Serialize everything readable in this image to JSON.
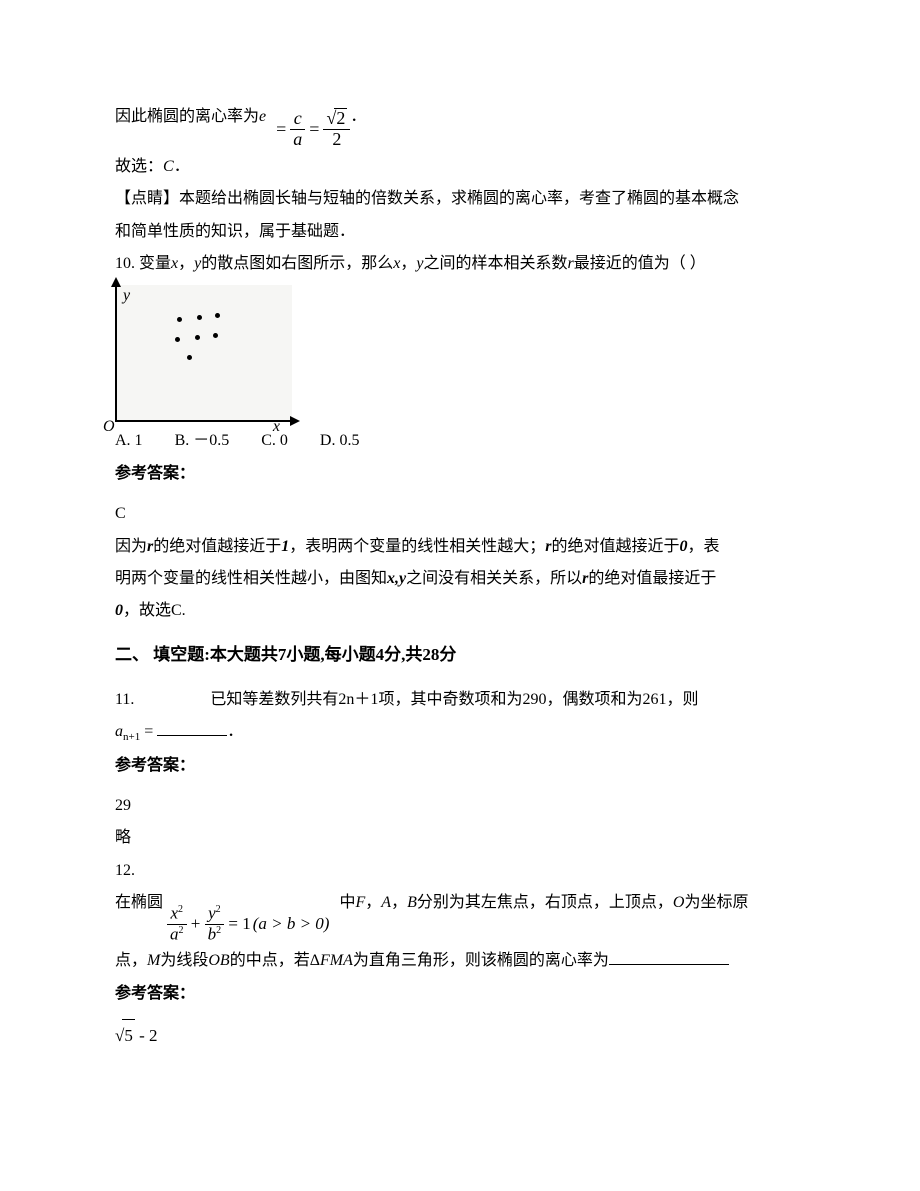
{
  "q9": {
    "pre": "因此椭圆的离心率为",
    "eVar": "e",
    "eq": {
      "lhs_num": "c",
      "lhs_den": "a",
      "rhs_num_radicand": "2",
      "rhs_den": "2"
    },
    "period": "．",
    "conclude": "故选：",
    "choice": "C",
    "concludeEnd": "．",
    "tipLabel": "【点睛】",
    "tip1": "本题给出椭圆长轴与短轴的倍数关系，求椭圆的离心率，考查了椭圆的基本概念",
    "tip2": "和简单性质的知识，属于基础题．"
  },
  "q10": {
    "num": "10. ",
    "pre1": "变量",
    "x": "x",
    "comma1": "，",
    "y": "y",
    "mid": "的散点图如右图所示，那么",
    "x2": "x",
    "comma2": "，",
    "y2": "y",
    "post": "之间的样本相关系数",
    "r": "r",
    "tail": "最接近的值为（  ）",
    "scatter": {
      "bg": "#f6f6f4",
      "axis": "#000000",
      "dot": "#000000",
      "ylabel": "y",
      "xlabel": "x",
      "origin": "O",
      "points": [
        [
          60,
          32
        ],
        [
          80,
          30
        ],
        [
          98,
          28
        ],
        [
          58,
          52
        ],
        [
          78,
          50
        ],
        [
          96,
          48
        ],
        [
          70,
          70
        ]
      ]
    },
    "choices": {
      "A": "A. 1",
      "B": "B. －0.5",
      "C": "C. 0",
      "D": "D. 0.5"
    },
    "refLabel": "参考答案：",
    "answer": "C",
    "exp1a": "因为",
    "rVar": "r",
    "exp1b": "的绝对值越接近于",
    "one": "1",
    "exp1c": "，表明两个变量的线性相关性越大；",
    "rVar2": "r",
    "exp1d": "的绝对值越接近于",
    "zero": "0",
    "exp1e": "，表",
    "exp2a": "明两个变量的线性相关性越小，由图知",
    "xy": "x,y",
    "exp2b": "之间没有相关关系，所以",
    "rVar3": "r",
    "exp2c": "的绝对值最接近于",
    "zero2": "0",
    "exp3": "，故选C."
  },
  "section2": "二、 填空题:本大题共7小题,每小题4分,共28分",
  "q11": {
    "num": "11. ",
    "pre": "已知等差数列共有",
    "term": "2n＋1",
    "mid": "项，其中奇数项和为290，偶数项和为261，则",
    "anVar": "a",
    "anSub": "n+1",
    "eq": " = ",
    "period": "．",
    "refLabel": "参考答案：",
    "answer": "29",
    "omit": "略"
  },
  "q12": {
    "num": "12.",
    "pre": "在椭圆",
    "eq": {
      "x2": "x",
      "a2": "a",
      "y2": "y",
      "b2": "b",
      "cond": "(a > b > 0)",
      "one": "1"
    },
    "mid1": "中",
    "F": "F",
    "A": "A",
    "B": "B",
    "mid2": "分别为其左焦点，右顶点，上顶点，",
    "O": "O",
    "mid3": "为坐标原",
    "line2a": "点，",
    "M": "M",
    "line2b": "为线段",
    "OB": "OB",
    "line2c": "的中点，若Δ",
    "FMA": "FMA",
    "line2d": "为直角三角形，则该椭圆的离心率为",
    "refLabel": "参考答案：",
    "ans_radicand": "5",
    "ans_tail": " - 2"
  }
}
